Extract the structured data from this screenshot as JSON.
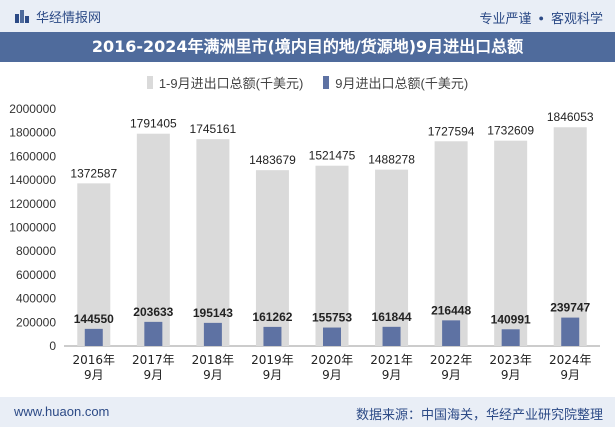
{
  "header": {
    "brand": "华经情报网",
    "tagline_left": "专业严谨",
    "tagline_right": "客观科学"
  },
  "title": "2016-2024年满洲里市(境内目的地/货源地)9月进出口总额",
  "footer": {
    "site": "www.huaon.com",
    "source": "数据来源：中国海关，华经产业研究院整理"
  },
  "colors": {
    "series1": "#dadada",
    "series2": "#5e72a3",
    "brand": "#2c4a86",
    "title_bg": "#4f6b9c"
  },
  "chart_data": {
    "type": "bar",
    "categories": [
      "2016年\n9月",
      "2017年\n9月",
      "2018年\n9月",
      "2019年\n9月",
      "2020年\n9月",
      "2021年\n9月",
      "2022年\n9月",
      "2023年\n9月",
      "2024年\n9月"
    ],
    "series": [
      {
        "name": "1-9月进出口总额(千美元)",
        "values": [
          1372587,
          1791405,
          1745161,
          1483679,
          1521475,
          1488278,
          1727594,
          1732609,
          1846053
        ]
      },
      {
        "name": "9月进出口总额(千美元)",
        "values": [
          144550,
          203633,
          195143,
          161262,
          155753,
          161844,
          216448,
          140991,
          239747
        ]
      }
    ],
    "ylim": [
      0,
      2000000
    ],
    "yticks": [
      0,
      200000,
      400000,
      600000,
      800000,
      1000000,
      1200000,
      1400000,
      1600000,
      1800000,
      2000000
    ],
    "legend_position": "top-center",
    "grid": false
  }
}
